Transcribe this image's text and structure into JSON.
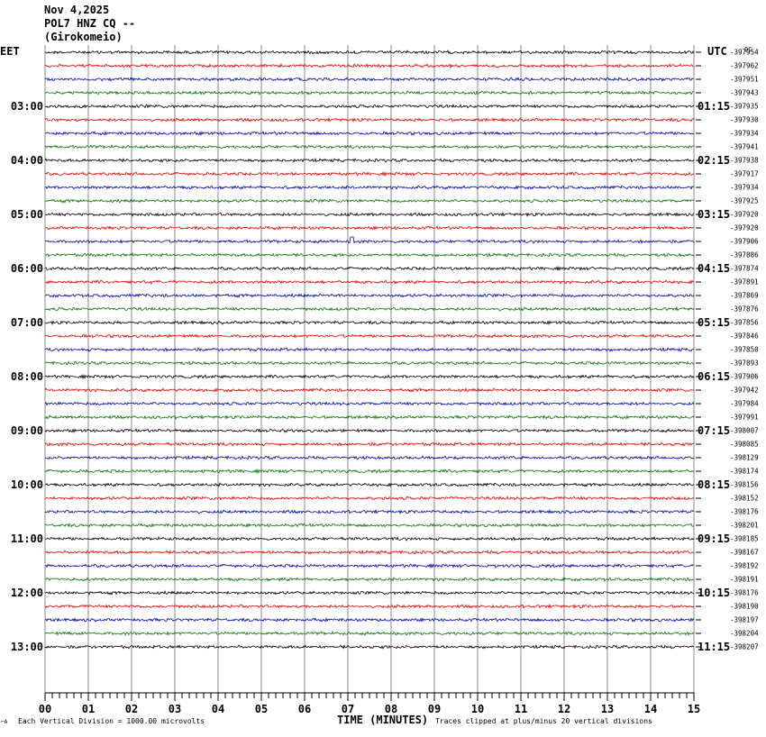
{
  "header": {
    "date": "Nov 4,2025",
    "station": "POL7 HNZ CQ --",
    "location": "(Girokomeio)"
  },
  "left_timezone": "EET",
  "right_timezone": "UTC",
  "corner_mark": "0C",
  "footer": {
    "scale_note": "Each Vertical Division = 1000.00 microvolts",
    "axis_title": "TIME (MINUTES)",
    "clip_note": "Traces clipped at plus/minus 20 vertical divisions",
    "small_mark": "⌐A"
  },
  "colors": {
    "trace_cycle": [
      "#000000",
      "#dd0000",
      "#0000aa",
      "#007700"
    ],
    "grid": "#888888"
  },
  "chart_data": {
    "type": "line",
    "title": "POL7 HNZ CQ --",
    "xlabel": "TIME (MINUTES)",
    "xlim": [
      0,
      15
    ],
    "x_ticks": [
      "00",
      "01",
      "02",
      "03",
      "04",
      "05",
      "06",
      "07",
      "08",
      "09",
      "10",
      "11",
      "12",
      "13",
      "14",
      "15"
    ],
    "hour_labels_left": [
      "03:00",
      "04:00",
      "05:00",
      "06:00",
      "07:00",
      "08:00",
      "09:00",
      "10:00",
      "11:00",
      "12:00",
      "13:00"
    ],
    "hour_labels_right": [
      "01:15",
      "02:15",
      "03:15",
      "04:15",
      "05:15",
      "06:15",
      "07:15",
      "08:15",
      "09:15",
      "10:15",
      "11:15"
    ],
    "trace_offsets": [
      -397954,
      -397962,
      -397951,
      -397943,
      -397935,
      -397930,
      -397934,
      -397941,
      -397938,
      -397917,
      -397934,
      -397925,
      -397920,
      -397920,
      -397906,
      -397886,
      -397874,
      -397891,
      -397869,
      -397876,
      -397856,
      -397846,
      -397850,
      -397893,
      -397906,
      -397942,
      -397984,
      -397991,
      -398007,
      -398085,
      -398129,
      -398174,
      -398156,
      -398152,
      -398176,
      -398201,
      -398185,
      -398167,
      -398192,
      -398191,
      -398176,
      -398190,
      -398197,
      -398204,
      -398207
    ],
    "event": {
      "trace_index": 14,
      "minute": 7.1
    },
    "grid": true
  }
}
